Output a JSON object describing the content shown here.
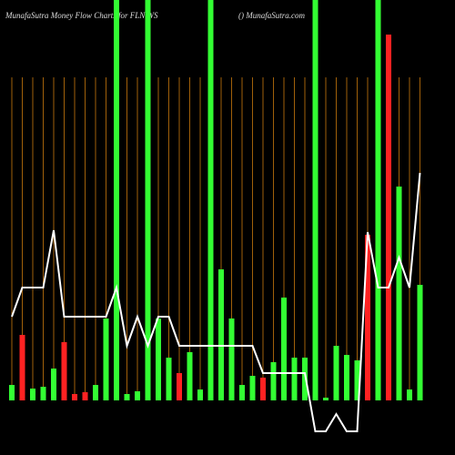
{
  "chart_data": {
    "type": "bar",
    "title": "MunafaSutra  Money Flow  Charts for FLN.WS",
    "subtitle": "() MunafaSutra.com",
    "grid": true,
    "grid_color": "#a0600a",
    "ylim": [
      -60,
      440
    ],
    "series": [
      {
        "type": "bar",
        "colors": [
          "#33ff33",
          "#ff2222",
          "#33ff33",
          "#33ff33",
          "#33ff33",
          "#ff2222",
          "#ff2222",
          "#ff2222",
          "#33ff33",
          "#33ff33",
          "#33ff33",
          "#33ff33",
          "#33ff33",
          "#33ff33",
          "#33ff33",
          "#33ff33",
          "#ff2222",
          "#33ff33",
          "#33ff33",
          "#33ff33",
          "#33ff33",
          "#33ff33",
          "#33ff33",
          "#33ff33",
          "#ff2222",
          "#33ff33",
          "#33ff33",
          "#33ff33",
          "#33ff33",
          "#33ff33",
          "#33ff33",
          "#33ff33",
          "#33ff33",
          "#33ff33",
          "#ff2222",
          "#33ff33",
          "#ff2222",
          "#33ff33",
          "#33ff33",
          "#33ff33"
        ],
        "values": [
          17,
          72,
          13,
          15,
          35,
          64,
          7,
          9,
          17,
          90,
          440,
          7,
          10,
          440,
          90,
          47,
          30,
          53,
          12,
          440,
          144,
          90,
          17,
          27,
          25,
          42,
          113,
          47,
          47,
          440,
          3,
          60,
          50,
          44,
          182,
          440,
          402,
          235,
          12,
          127
        ]
      },
      {
        "type": "line",
        "color": "#ffffff",
        "values": [
          92,
          124,
          124,
          124,
          187,
          92,
          92,
          92,
          92,
          92,
          124,
          60,
          92,
          60,
          92,
          92,
          60,
          60,
          60,
          60,
          60,
          60,
          60,
          60,
          30,
          30,
          30,
          30,
          30,
          -34,
          -34,
          -15,
          -34,
          -34,
          185,
          124,
          124,
          157,
          124,
          250
        ]
      }
    ]
  }
}
